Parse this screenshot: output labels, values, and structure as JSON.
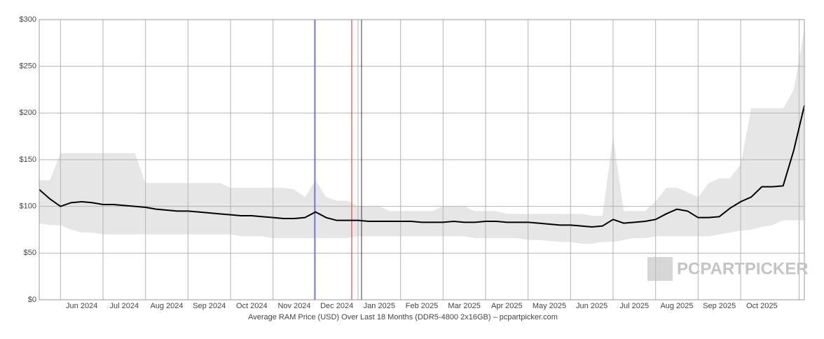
{
  "chart_data": {
    "type": "line",
    "x_label": "Average RAM Price (USD) Over Last 18 Months (DDR5-4800 2x16GB) – pcpartpicker.com",
    "watermark": "PCPARTPICKER",
    "categories": [
      null,
      null,
      null,
      null,
      "Jun 2024",
      null,
      null,
      null,
      "Jul 2024",
      null,
      null,
      null,
      "Aug 2024",
      null,
      null,
      null,
      "Sep 2024",
      null,
      null,
      null,
      "Oct 2024",
      null,
      null,
      null,
      "Nov 2024",
      null,
      null,
      null,
      "Dec 2024",
      null,
      null,
      null,
      "Jan 2025",
      null,
      null,
      null,
      "Feb 2025",
      null,
      null,
      null,
      "Mar 2025",
      null,
      null,
      null,
      "Apr 2025",
      null,
      null,
      null,
      "May 2025",
      null,
      null,
      null,
      "Jun 2025",
      null,
      null,
      null,
      "Jul 2025",
      null,
      null,
      null,
      "Aug 2025",
      null,
      null,
      null,
      "Sep 2025",
      null,
      null,
      null,
      "Oct 2025",
      null,
      null,
      null,
      null
    ],
    "series": [
      {
        "color": "#000000",
        "values": [
          118,
          108,
          100,
          104,
          105,
          104,
          102,
          102,
          101,
          100,
          99,
          97,
          96,
          95,
          95,
          94,
          93,
          92,
          91,
          90,
          90,
          89,
          88,
          87,
          87,
          88,
          94,
          88,
          85,
          85,
          85,
          84,
          84,
          84,
          84,
          84,
          83,
          83,
          83,
          84,
          83,
          83,
          84,
          84,
          83,
          83,
          83,
          82,
          81,
          80,
          80,
          79,
          78,
          79,
          86,
          82,
          83,
          84,
          86,
          92,
          97,
          95,
          88,
          88,
          89,
          98,
          105,
          110,
          121,
          121,
          122,
          160,
          208
        ]
      }
    ],
    "range": {
      "color": "#e6e6e6",
      "high": [
        128,
        128,
        157,
        157,
        157,
        157,
        157,
        157,
        157,
        157,
        125,
        125,
        125,
        125,
        125,
        125,
        125,
        125,
        120,
        120,
        120,
        120,
        120,
        120,
        118,
        110,
        128,
        110,
        106,
        106,
        100,
        100,
        100,
        95,
        95,
        95,
        95,
        95,
        100,
        100,
        100,
        95,
        95,
        95,
        92,
        92,
        92,
        92,
        92,
        92,
        92,
        92,
        90,
        90,
        175,
        95,
        95,
        95,
        105,
        120,
        120,
        115,
        110,
        125,
        130,
        130,
        145,
        205,
        205,
        205,
        205,
        225,
        290
      ],
      "low": [
        82,
        80,
        80,
        75,
        72,
        72,
        70,
        70,
        70,
        70,
        70,
        70,
        70,
        70,
        70,
        70,
        70,
        70,
        70,
        68,
        68,
        68,
        66,
        66,
        66,
        66,
        66,
        66,
        66,
        66,
        68,
        68,
        68,
        68,
        68,
        68,
        68,
        68,
        68,
        68,
        68,
        66,
        66,
        66,
        66,
        66,
        64,
        64,
        63,
        62,
        62,
        60,
        60,
        62,
        62,
        64,
        66,
        66,
        68,
        68,
        68,
        68,
        68,
        68,
        70,
        72,
        74,
        75,
        78,
        80,
        85,
        85,
        85
      ]
    },
    "ylim": [
      0,
      300
    ],
    "yticks": [
      {
        "value": 0,
        "label": "$0"
      },
      {
        "value": 50,
        "label": "$50"
      },
      {
        "value": 100,
        "label": "$100"
      },
      {
        "value": 150,
        "label": "$150"
      },
      {
        "value": 200,
        "label": "$200"
      },
      {
        "value": 250,
        "label": "$250"
      },
      {
        "value": 300,
        "label": "$300"
      }
    ],
    "grid": true
  }
}
